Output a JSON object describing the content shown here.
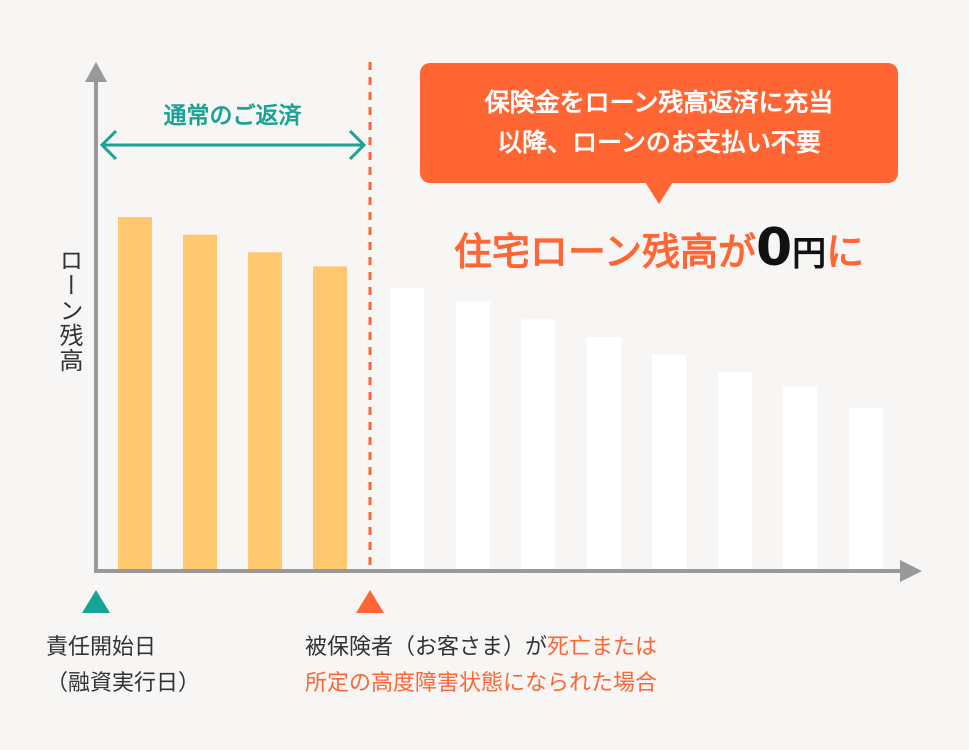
{
  "y_axis_label": "ローン残高",
  "normal_repayment_label": "通常のご返済",
  "callout": {
    "line1": "保険金をローン残高返済に充当",
    "line2": "以降、ローンのお支払い不要"
  },
  "result": {
    "prefix": "住宅ローン残高が",
    "zero": "0",
    "yen": "円",
    "suffix": "に"
  },
  "start_marker": {
    "line1": "責任開始日",
    "line2": "（融資実行日）"
  },
  "event_marker": {
    "line1_plain": "被保険者（お客さま）が",
    "line1_highlight": "死亡または",
    "line2_highlight": "所定の高度障害状態になられた場合"
  },
  "colors": {
    "paid_bar": "#ffc76e",
    "covered_bar": "#ffffff",
    "accent_orange": "#ff6633",
    "accent_green": "#1aa394",
    "axis": "#999999"
  },
  "chart_data": {
    "type": "bar",
    "ylabel": "ローン残高",
    "relative_balance": [
      100,
      95,
      90,
      86,
      80,
      76,
      71,
      66,
      61,
      56,
      52,
      46
    ],
    "paid_by_customer_count": 4
  }
}
